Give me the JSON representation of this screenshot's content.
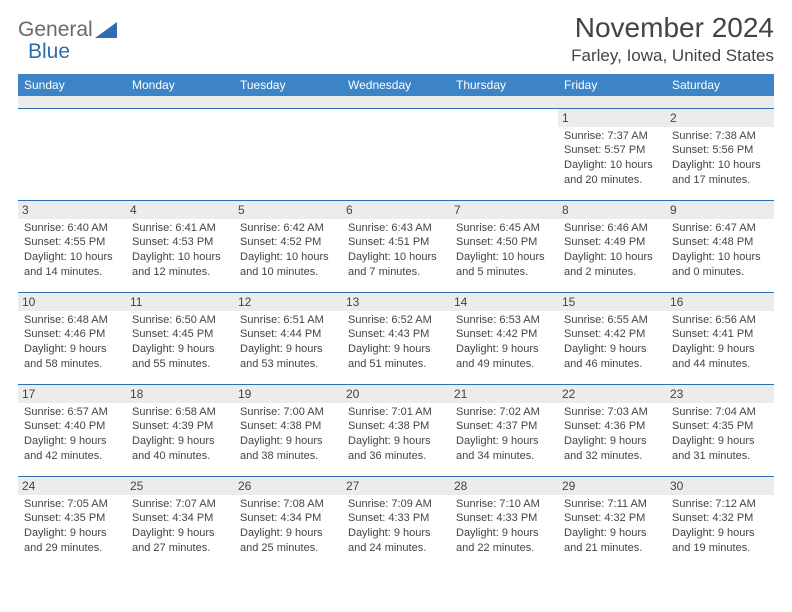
{
  "logo": {
    "part1": "General",
    "part2": "Blue"
  },
  "title": "November 2024",
  "location": "Farley, Iowa, United States",
  "colors": {
    "header_bg": "#3d84c6",
    "header_text": "#ffffff",
    "daynum_bg": "#ececec",
    "border": "#2f6fb0",
    "text": "#444444",
    "logo_gray": "#6a6a6a",
    "logo_blue": "#2f6fb0"
  },
  "weekdays": [
    "Sunday",
    "Monday",
    "Tuesday",
    "Wednesday",
    "Thursday",
    "Friday",
    "Saturday"
  ],
  "layout": {
    "first_day_column": 5,
    "days_in_month": 30
  },
  "days": {
    "1": {
      "sunrise": "7:37 AM",
      "sunset": "5:57 PM",
      "daylight": "10 hours and 20 minutes."
    },
    "2": {
      "sunrise": "7:38 AM",
      "sunset": "5:56 PM",
      "daylight": "10 hours and 17 minutes."
    },
    "3": {
      "sunrise": "6:40 AM",
      "sunset": "4:55 PM",
      "daylight": "10 hours and 14 minutes."
    },
    "4": {
      "sunrise": "6:41 AM",
      "sunset": "4:53 PM",
      "daylight": "10 hours and 12 minutes."
    },
    "5": {
      "sunrise": "6:42 AM",
      "sunset": "4:52 PM",
      "daylight": "10 hours and 10 minutes."
    },
    "6": {
      "sunrise": "6:43 AM",
      "sunset": "4:51 PM",
      "daylight": "10 hours and 7 minutes."
    },
    "7": {
      "sunrise": "6:45 AM",
      "sunset": "4:50 PM",
      "daylight": "10 hours and 5 minutes."
    },
    "8": {
      "sunrise": "6:46 AM",
      "sunset": "4:49 PM",
      "daylight": "10 hours and 2 minutes."
    },
    "9": {
      "sunrise": "6:47 AM",
      "sunset": "4:48 PM",
      "daylight": "10 hours and 0 minutes."
    },
    "10": {
      "sunrise": "6:48 AM",
      "sunset": "4:46 PM",
      "daylight": "9 hours and 58 minutes."
    },
    "11": {
      "sunrise": "6:50 AM",
      "sunset": "4:45 PM",
      "daylight": "9 hours and 55 minutes."
    },
    "12": {
      "sunrise": "6:51 AM",
      "sunset": "4:44 PM",
      "daylight": "9 hours and 53 minutes."
    },
    "13": {
      "sunrise": "6:52 AM",
      "sunset": "4:43 PM",
      "daylight": "9 hours and 51 minutes."
    },
    "14": {
      "sunrise": "6:53 AM",
      "sunset": "4:42 PM",
      "daylight": "9 hours and 49 minutes."
    },
    "15": {
      "sunrise": "6:55 AM",
      "sunset": "4:42 PM",
      "daylight": "9 hours and 46 minutes."
    },
    "16": {
      "sunrise": "6:56 AM",
      "sunset": "4:41 PM",
      "daylight": "9 hours and 44 minutes."
    },
    "17": {
      "sunrise": "6:57 AM",
      "sunset": "4:40 PM",
      "daylight": "9 hours and 42 minutes."
    },
    "18": {
      "sunrise": "6:58 AM",
      "sunset": "4:39 PM",
      "daylight": "9 hours and 40 minutes."
    },
    "19": {
      "sunrise": "7:00 AM",
      "sunset": "4:38 PM",
      "daylight": "9 hours and 38 minutes."
    },
    "20": {
      "sunrise": "7:01 AM",
      "sunset": "4:38 PM",
      "daylight": "9 hours and 36 minutes."
    },
    "21": {
      "sunrise": "7:02 AM",
      "sunset": "4:37 PM",
      "daylight": "9 hours and 34 minutes."
    },
    "22": {
      "sunrise": "7:03 AM",
      "sunset": "4:36 PM",
      "daylight": "9 hours and 32 minutes."
    },
    "23": {
      "sunrise": "7:04 AM",
      "sunset": "4:35 PM",
      "daylight": "9 hours and 31 minutes."
    },
    "24": {
      "sunrise": "7:05 AM",
      "sunset": "4:35 PM",
      "daylight": "9 hours and 29 minutes."
    },
    "25": {
      "sunrise": "7:07 AM",
      "sunset": "4:34 PM",
      "daylight": "9 hours and 27 minutes."
    },
    "26": {
      "sunrise": "7:08 AM",
      "sunset": "4:34 PM",
      "daylight": "9 hours and 25 minutes."
    },
    "27": {
      "sunrise": "7:09 AM",
      "sunset": "4:33 PM",
      "daylight": "9 hours and 24 minutes."
    },
    "28": {
      "sunrise": "7:10 AM",
      "sunset": "4:33 PM",
      "daylight": "9 hours and 22 minutes."
    },
    "29": {
      "sunrise": "7:11 AM",
      "sunset": "4:32 PM",
      "daylight": "9 hours and 21 minutes."
    },
    "30": {
      "sunrise": "7:12 AM",
      "sunset": "4:32 PM",
      "daylight": "9 hours and 19 minutes."
    }
  },
  "labels": {
    "sunrise": "Sunrise: ",
    "sunset": "Sunset: ",
    "daylight": "Daylight: "
  }
}
